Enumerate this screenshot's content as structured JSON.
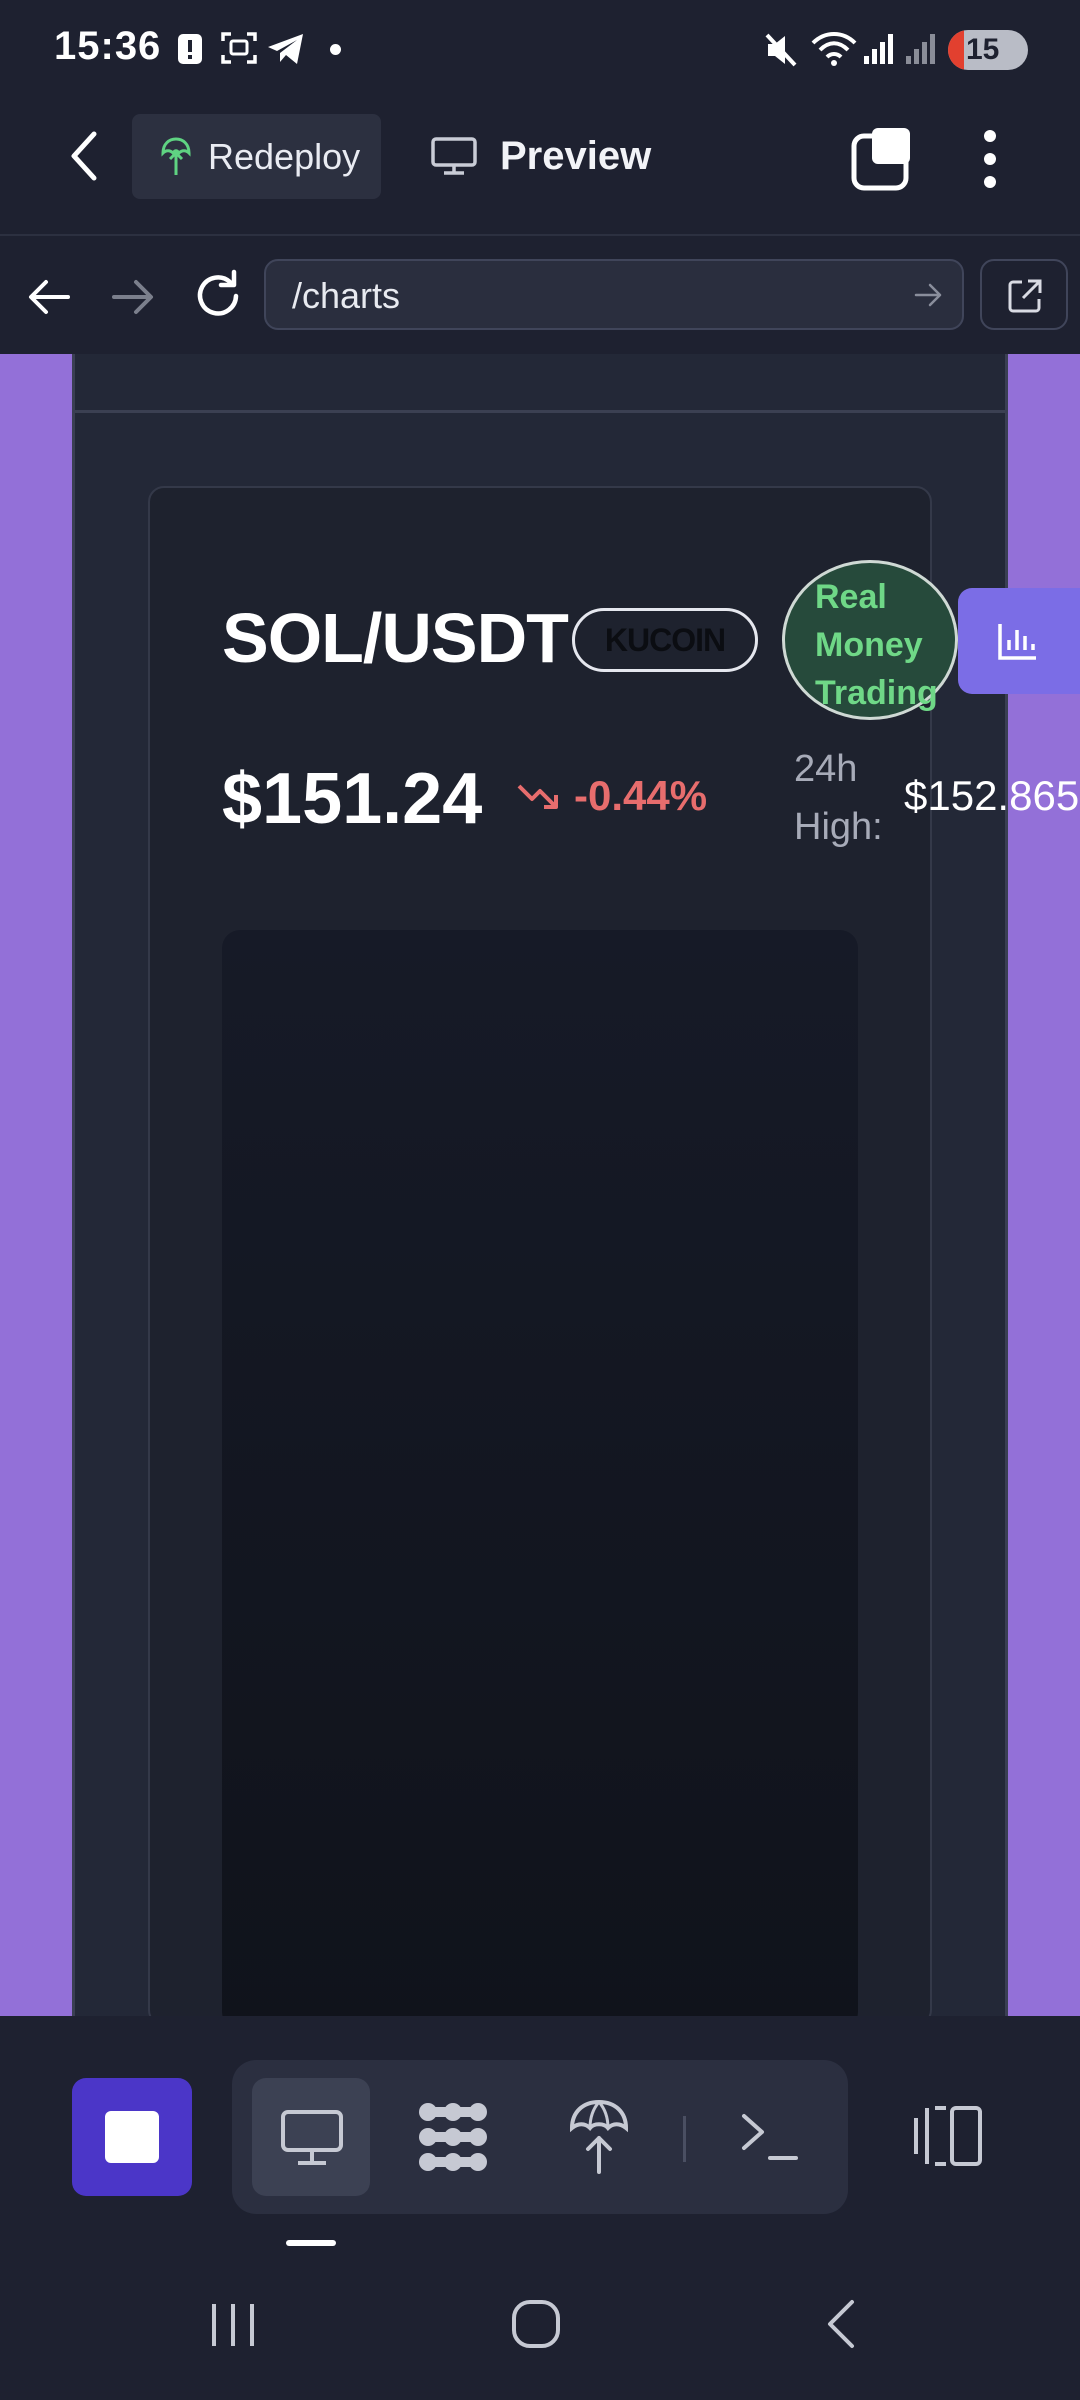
{
  "status_bar": {
    "time": "15:36",
    "battery": "15",
    "icons": [
      "alert-icon",
      "screenshot-icon",
      "telegram-icon",
      "dot-icon",
      "mute-icon",
      "wifi-icon",
      "signal-icon",
      "signal-icon",
      "battery-icon"
    ]
  },
  "header": {
    "redeploy_label": "Redeploy",
    "preview_label": "Preview",
    "colors": {
      "redeploy_icon": "#5fd382",
      "background": "#1e2130"
    }
  },
  "url_bar": {
    "value": "/charts"
  },
  "trading_card": {
    "pair": "SOL/USDT",
    "exchange": "KUCOIN",
    "mode_badge": [
      "Real",
      "Money",
      "Trading"
    ],
    "price": "$151.24",
    "change": "-0.44%",
    "high_label": [
      "24h",
      "High:"
    ],
    "high_value": "$152.865",
    "colors": {
      "negative": "#e76d6d",
      "mode_badge_text": "#6fd887",
      "accent": "#7b6de6",
      "page_bg": "#9370d8"
    }
  },
  "toolbar": {
    "icons": [
      "stop-icon",
      "desktop-icon",
      "dots-icon",
      "deploy-icon",
      "terminal-icon",
      "layout-icon"
    ]
  }
}
